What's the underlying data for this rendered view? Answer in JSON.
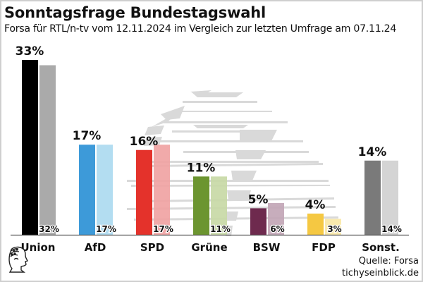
{
  "chart_data": {
    "type": "bar",
    "title": "Sonntagsfrage Bundestagswahl",
    "subtitle": "Forsa für RTL/n-tv vom 12.11.2024 im Vergleich zur letzten Umfrage am 07.11.24",
    "xlabel": "",
    "ylabel": "",
    "ylim": [
      0,
      33
    ],
    "grid": false,
    "categories": [
      "Union",
      "AfD",
      "SPD",
      "Grüne",
      "BSW",
      "FDP",
      "Sonst."
    ],
    "series": [
      {
        "name": "12.11.2024",
        "values": [
          33,
          17,
          16,
          11,
          5,
          4,
          14
        ],
        "labels": [
          "33%",
          "17%",
          "16%",
          "11%",
          "5%",
          "4%",
          "14%"
        ]
      },
      {
        "name": "07.11.2024",
        "values": [
          32,
          17,
          17,
          11,
          6,
          3,
          14
        ],
        "labels": [
          "32%",
          "17%",
          "17%",
          "11%",
          "6%",
          "3%",
          "14%"
        ]
      }
    ],
    "colors_current": [
      "#000000",
      "#3d9ad9",
      "#e4322b",
      "#6c9530",
      "#6e2a4e",
      "#f5c842",
      "#7a7a7a"
    ],
    "colors_previous": [
      "#a3a3a3",
      "#addaf0",
      "#f0a3a3",
      "#c8d9a6",
      "#c2a6b6",
      "#f8e7a6",
      "#d0d0d0"
    ]
  },
  "footer": {
    "source": "Quelle: Forsa",
    "site": "tichyseinblick.de",
    "logo_icon": "head-profile-logo"
  }
}
